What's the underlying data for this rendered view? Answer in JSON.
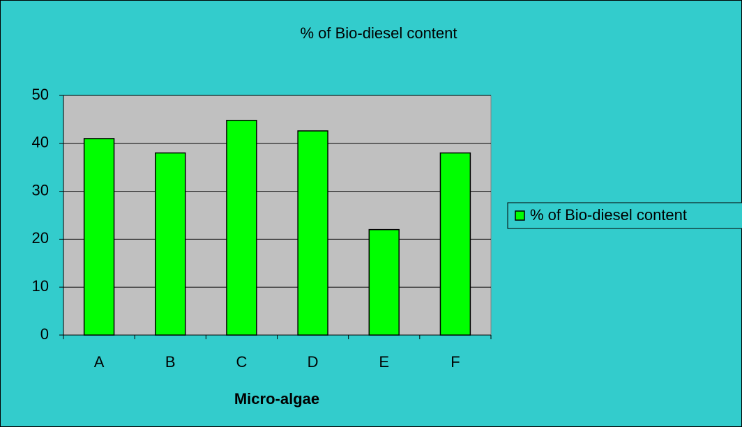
{
  "chart_data": {
    "type": "bar",
    "title": "% of Bio-diesel content",
    "x_label": "Micro-algae",
    "categories": [
      "A",
      "B",
      "C",
      "D",
      "E",
      "F"
    ],
    "series": [
      {
        "name": "% of Bio-diesel content",
        "color": "#00ff00",
        "values": [
          41,
          38,
          44.8,
          42.6,
          22,
          38
        ]
      }
    ],
    "ylim": [
      0,
      50
    ],
    "yticks": [
      0,
      10,
      20,
      30,
      40,
      50
    ],
    "grid": true,
    "legend": "right"
  }
}
